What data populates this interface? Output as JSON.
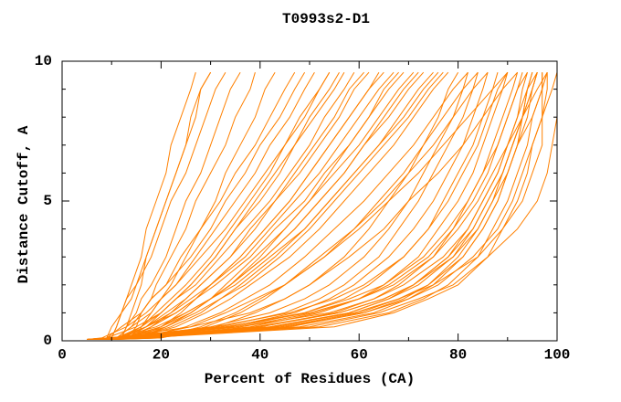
{
  "chart_data": {
    "type": "line",
    "title": "T0993s2-D1",
    "xlabel": "Percent of Residues (CA)",
    "ylabel": "Distance Cutoff, A",
    "xlim": [
      0,
      100
    ],
    "ylim": [
      0,
      10
    ],
    "grid": false,
    "legend": "none",
    "frame": "full-box-with-inward-ticks",
    "line_color": "#ff8000",
    "frame_color": "#000000",
    "background_color": "#ffffff",
    "x_major_ticks": [
      {
        "v": 0,
        "label": "0"
      },
      {
        "v": 20,
        "label": "20"
      },
      {
        "v": 40,
        "label": "40"
      },
      {
        "v": 60,
        "label": "60"
      },
      {
        "v": 80,
        "label": "80"
      },
      {
        "v": 100,
        "label": "100"
      }
    ],
    "x_minor_ticks": [
      10,
      30,
      50,
      70,
      90
    ],
    "y_major_ticks": [
      {
        "v": 0,
        "label": "0"
      },
      {
        "v": 5,
        "label": "5"
      },
      {
        "v": 10,
        "label": "10"
      }
    ],
    "y_minor_ticks": [
      1,
      2,
      3,
      4,
      6,
      7,
      8,
      9
    ],
    "series_y": [
      0.05,
      0.1,
      0.5,
      1,
      1.5,
      2,
      3,
      4,
      5,
      6,
      7,
      8,
      9,
      9.6
    ],
    "series_x": [
      [
        6,
        10,
        11,
        12,
        13,
        14,
        16,
        17,
        19,
        21,
        22,
        24,
        26,
        27
      ],
      [
        7,
        12,
        13,
        14,
        15,
        16,
        17,
        19,
        21,
        23,
        25,
        26,
        28,
        30
      ],
      [
        5,
        10,
        11,
        12,
        14,
        15,
        18,
        20,
        22,
        25,
        27,
        29,
        31,
        33
      ],
      [
        7,
        12,
        13,
        15,
        16,
        18,
        21,
        23,
        25,
        28,
        30,
        32,
        34,
        36
      ],
      [
        8,
        13,
        15,
        16,
        18,
        19,
        22,
        25,
        27,
        30,
        33,
        35,
        38,
        39
      ],
      [
        5,
        9,
        10,
        12,
        13,
        15,
        17,
        19,
        21,
        23,
        25,
        27,
        28,
        30
      ],
      [
        8,
        15,
        16,
        18,
        20,
        22,
        25,
        28,
        31,
        33,
        36,
        39,
        41,
        43
      ],
      [
        6,
        11,
        14,
        16,
        18,
        21,
        24,
        28,
        32,
        35,
        39,
        42,
        45,
        47
      ],
      [
        5,
        9,
        12,
        16,
        18,
        21,
        26,
        30,
        33,
        37,
        40,
        44,
        47,
        49
      ],
      [
        6,
        11,
        16,
        19,
        22,
        25,
        30,
        34,
        38,
        42,
        45,
        49,
        52,
        54
      ],
      [
        7,
        12,
        16,
        20,
        23,
        26,
        31,
        35,
        40,
        44,
        47,
        51,
        55,
        57
      ],
      [
        5,
        9,
        15,
        20,
        23,
        27,
        32,
        37,
        42,
        46,
        50,
        53,
        57,
        59
      ],
      [
        8,
        14,
        18,
        22,
        25,
        28,
        34,
        38,
        43,
        47,
        51,
        55,
        58,
        61
      ],
      [
        6,
        12,
        17,
        22,
        26,
        30,
        36,
        41,
        46,
        50,
        54,
        58,
        62,
        64
      ],
      [
        7,
        13,
        18,
        23,
        27,
        30,
        37,
        42,
        47,
        52,
        56,
        60,
        64,
        67
      ],
      [
        5,
        11,
        17,
        23,
        27,
        31,
        38,
        43,
        49,
        53,
        58,
        62,
        66,
        69
      ],
      [
        8,
        15,
        21,
        26,
        30,
        33,
        39,
        45,
        50,
        55,
        60,
        64,
        68,
        71
      ],
      [
        6,
        13,
        20,
        25,
        30,
        34,
        41,
        47,
        52,
        57,
        61,
        66,
        70,
        73
      ],
      [
        7,
        13,
        21,
        27,
        32,
        36,
        43,
        49,
        54,
        59,
        64,
        68,
        72,
        75
      ],
      [
        8,
        15,
        22,
        28,
        32,
        37,
        44,
        50,
        55,
        60,
        65,
        70,
        74,
        77
      ],
      [
        5,
        8,
        13,
        17,
        20,
        23,
        28,
        33,
        37,
        41,
        45,
        48,
        52,
        54
      ],
      [
        9,
        15,
        20,
        24,
        27,
        30,
        36,
        41,
        46,
        50,
        54,
        58,
        62,
        65
      ],
      [
        5,
        10,
        26,
        38,
        45,
        50,
        57,
        62,
        66,
        70,
        73,
        76,
        78,
        80
      ],
      [
        6,
        12,
        30,
        42,
        49,
        54,
        61,
        66,
        70,
        73,
        76,
        79,
        81,
        82
      ],
      [
        6,
        11,
        32,
        45,
        52,
        57,
        64,
        68,
        72,
        75,
        78,
        81,
        83,
        84
      ],
      [
        8,
        14,
        34,
        47,
        54,
        59,
        66,
        71,
        75,
        78,
        81,
        83,
        85,
        86
      ],
      [
        6,
        12,
        35,
        49,
        57,
        62,
        69,
        74,
        77,
        80,
        83,
        85,
        87,
        88
      ],
      [
        8,
        15,
        38,
        52,
        60,
        65,
        72,
        76,
        80,
        83,
        85,
        87,
        89,
        90
      ],
      [
        5,
        10,
        31,
        46,
        55,
        61,
        69,
        74,
        78,
        81,
        84,
        86,
        88,
        90
      ],
      [
        9,
        16,
        40,
        55,
        63,
        68,
        75,
        79,
        82,
        85,
        87,
        89,
        91,
        92
      ],
      [
        7,
        13,
        36,
        51,
        60,
        66,
        74,
        79,
        83,
        86,
        88,
        90,
        92,
        93
      ],
      [
        9,
        17,
        43,
        58,
        66,
        71,
        78,
        82,
        85,
        88,
        90,
        92,
        93,
        94
      ],
      [
        6,
        11,
        33,
        49,
        58,
        65,
        73,
        78,
        82,
        85,
        88,
        90,
        92,
        94
      ],
      [
        10,
        18,
        45,
        61,
        69,
        74,
        80,
        84,
        87,
        89,
        91,
        93,
        94,
        95
      ],
      [
        7,
        14,
        39,
        56,
        65,
        71,
        78,
        83,
        86,
        89,
        91,
        93,
        95,
        96
      ],
      [
        8,
        16,
        42,
        59,
        68,
        74,
        81,
        85,
        88,
        90,
        92,
        94,
        95,
        96
      ],
      [
        7,
        14,
        48,
        63,
        70,
        75,
        81,
        85,
        88,
        90,
        92,
        93,
        95,
        96
      ],
      [
        6,
        12,
        42,
        58,
        66,
        72,
        79,
        83,
        86,
        89,
        91,
        93,
        94,
        95
      ],
      [
        8,
        15,
        52,
        66,
        73,
        78,
        84,
        87,
        90,
        92,
        94,
        95,
        97,
        97
      ],
      [
        5,
        10,
        36,
        54,
        63,
        69,
        77,
        82,
        85,
        88,
        90,
        92,
        94,
        96
      ],
      [
        8,
        16,
        55,
        67,
        74,
        80,
        86,
        89,
        92,
        94,
        95,
        97,
        98,
        98
      ],
      [
        6,
        11,
        40,
        56,
        65,
        71,
        79,
        84,
        87,
        90,
        92,
        95,
        97,
        98
      ],
      [
        7,
        13,
        46,
        61,
        70,
        76,
        83,
        88,
        91,
        93,
        95,
        97,
        99,
        100
      ],
      [
        5,
        9,
        33,
        50,
        60,
        67,
        75,
        80,
        84,
        87,
        90,
        93,
        96,
        98
      ],
      [
        8,
        15,
        50,
        64,
        72,
        79,
        86,
        92,
        96,
        98,
        99,
        100,
        100,
        100
      ],
      [
        6,
        12,
        44,
        60,
        68,
        75,
        84,
        89,
        93,
        95,
        97,
        97,
        97,
        97
      ],
      [
        6,
        11,
        14,
        18,
        20,
        23,
        27,
        31,
        35,
        39,
        42,
        46,
        49,
        51
      ],
      [
        7,
        13,
        17,
        20,
        23,
        26,
        31,
        35,
        39,
        43,
        47,
        50,
        54,
        56
      ],
      [
        6,
        12,
        17,
        21,
        25,
        28,
        34,
        39,
        43,
        48,
        52,
        56,
        59,
        62
      ],
      [
        9,
        16,
        21,
        26,
        30,
        34,
        40,
        45,
        50,
        54,
        58,
        62,
        65,
        68
      ],
      [
        6,
        12,
        20,
        26,
        30,
        34,
        41,
        47,
        52,
        57,
        61,
        65,
        69,
        72
      ],
      [
        8,
        15,
        23,
        29,
        34,
        38,
        46,
        52,
        57,
        62,
        67,
        71,
        75,
        78
      ],
      [
        8,
        16,
        25,
        32,
        37,
        42,
        49,
        55,
        61,
        66,
        71,
        75,
        79,
        82
      ],
      [
        10,
        19,
        28,
        35,
        40,
        45,
        53,
        59,
        65,
        70,
        75,
        79,
        83,
        86
      ],
      [
        7,
        15,
        26,
        33,
        39,
        45,
        53,
        60,
        66,
        72,
        77,
        82,
        87,
        90
      ],
      [
        10,
        20,
        31,
        39,
        45,
        50,
        58,
        65,
        70,
        76,
        81,
        85,
        89,
        92
      ],
      [
        6,
        11,
        19,
        25,
        30,
        35,
        42,
        49,
        54,
        59,
        64,
        69,
        73,
        76
      ],
      [
        11,
        20,
        29,
        36,
        41,
        45,
        52,
        59,
        64,
        69,
        73,
        77,
        81,
        84
      ]
    ]
  }
}
